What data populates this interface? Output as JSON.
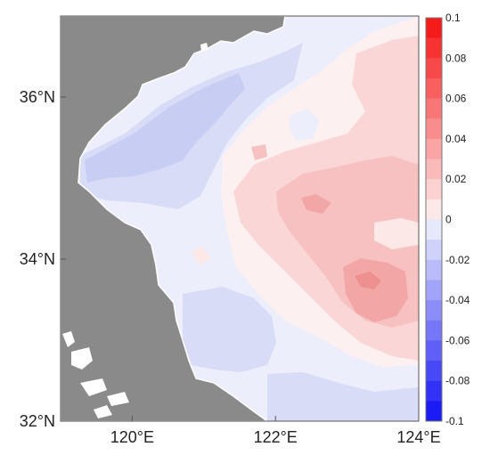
{
  "map": {
    "x_axis": {
      "min": 119,
      "max": 124,
      "ticks": [
        {
          "value": 120,
          "label": "120°E"
        },
        {
          "value": 122,
          "label": "122°E"
        },
        {
          "value": 124,
          "label": "124°E"
        }
      ]
    },
    "y_axis": {
      "min": 32,
      "max": 37,
      "ticks": [
        {
          "value": 32,
          "label": "32°N"
        },
        {
          "value": 34,
          "label": "34°N"
        },
        {
          "value": 36,
          "label": "36°N"
        }
      ]
    },
    "colors": {
      "land": "#8a8a8a",
      "coast": "#ffffff",
      "neg_strong": "#1b1bf5",
      "neg_weak": "#e6e9fb",
      "pos_weak": "#fde8e8",
      "pos_strong": "#f51b1b"
    }
  },
  "colorbar": {
    "min": -0.1,
    "max": 0.1,
    "step": 0.01,
    "ticks": [
      {
        "value": 0.1,
        "label": "0.1"
      },
      {
        "value": 0.08,
        "label": "0.08"
      },
      {
        "value": 0.06,
        "label": "0.06"
      },
      {
        "value": 0.04,
        "label": "0.04"
      },
      {
        "value": 0.02,
        "label": "0.02"
      },
      {
        "value": 0,
        "label": "0"
      },
      {
        "value": -0.02,
        "label": "-0.02"
      },
      {
        "value": -0.04,
        "label": "-0.04"
      },
      {
        "value": -0.06,
        "label": "-0.06"
      },
      {
        "value": -0.08,
        "label": "-0.08"
      },
      {
        "value": -0.1,
        "label": "-0.1"
      }
    ]
  }
}
